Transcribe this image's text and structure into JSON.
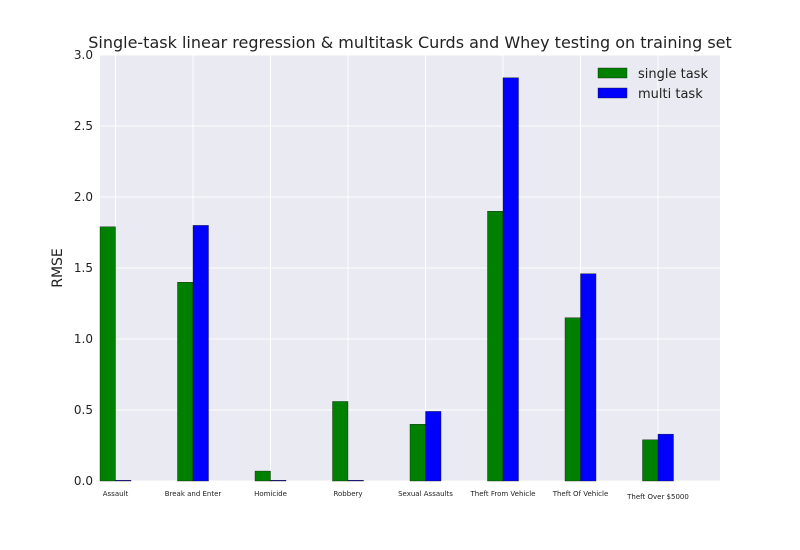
{
  "chart_data": {
    "type": "bar",
    "title": "Single-task linear regression & multitask Curds and Whey testing on training set",
    "xlabel": "",
    "ylabel": "RMSE",
    "ylim": [
      0,
      3.0
    ],
    "yticks": [
      "0.0",
      "0.5",
      "1.0",
      "1.5",
      "2.0",
      "2.5",
      "3.0"
    ],
    "categories": [
      "Assault",
      "Break and Enter",
      "Homicide",
      "Robbery",
      "Sexual Assaults",
      "Theft From Vehicle",
      "Theft Of Vehicle",
      "Theft Over $5000"
    ],
    "series": [
      {
        "name": "single task",
        "color": "#008000",
        "values": [
          1.79,
          1.4,
          0.07,
          0.56,
          0.4,
          1.9,
          1.15,
          0.29
        ]
      },
      {
        "name": "multi task",
        "color": "#0000ff",
        "values": [
          0.005,
          1.8,
          0.005,
          0.005,
          0.49,
          2.84,
          1.46,
          0.33
        ]
      }
    ],
    "grid": true,
    "legend": "top-right",
    "background": "#eaeaf2"
  }
}
